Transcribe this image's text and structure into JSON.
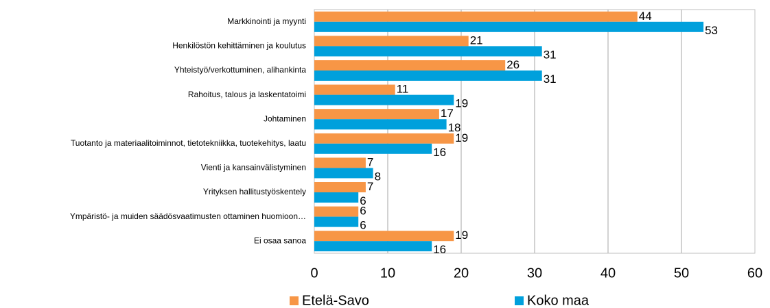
{
  "chart_data": {
    "type": "hbar",
    "categories": [
      "Markkinointi ja myynti",
      "Henkilöstön kehittäminen ja koulutus",
      "Yhteistyö/verkottuminen, alihankinta",
      "Rahoitus, talous ja laskentatoimi",
      "Johtaminen",
      "Tuotanto ja materiaalitoiminnot, tietotekniikka, tuotekehitys, laatu",
      "Vienti ja kansainvälistyminen",
      "Yrityksen hallitustyöskentely",
      "Ympäristö- ja muiden säädösvaatimusten ottaminen huomioon…",
      "Ei osaa sanoa"
    ],
    "series": [
      {
        "name": "Etelä-Savo",
        "color": "#f79646",
        "values": [
          44,
          21,
          26,
          11,
          17,
          19,
          7,
          7,
          6,
          19
        ]
      },
      {
        "name": "Koko maa",
        "color": "#00a0dc",
        "values": [
          53,
          31,
          31,
          19,
          18,
          16,
          8,
          6,
          6,
          16
        ]
      }
    ],
    "xlim": [
      0,
      60
    ],
    "xticks": [
      0,
      10,
      20,
      30,
      40,
      50,
      60
    ],
    "grid": true,
    "legend": "bottom"
  }
}
